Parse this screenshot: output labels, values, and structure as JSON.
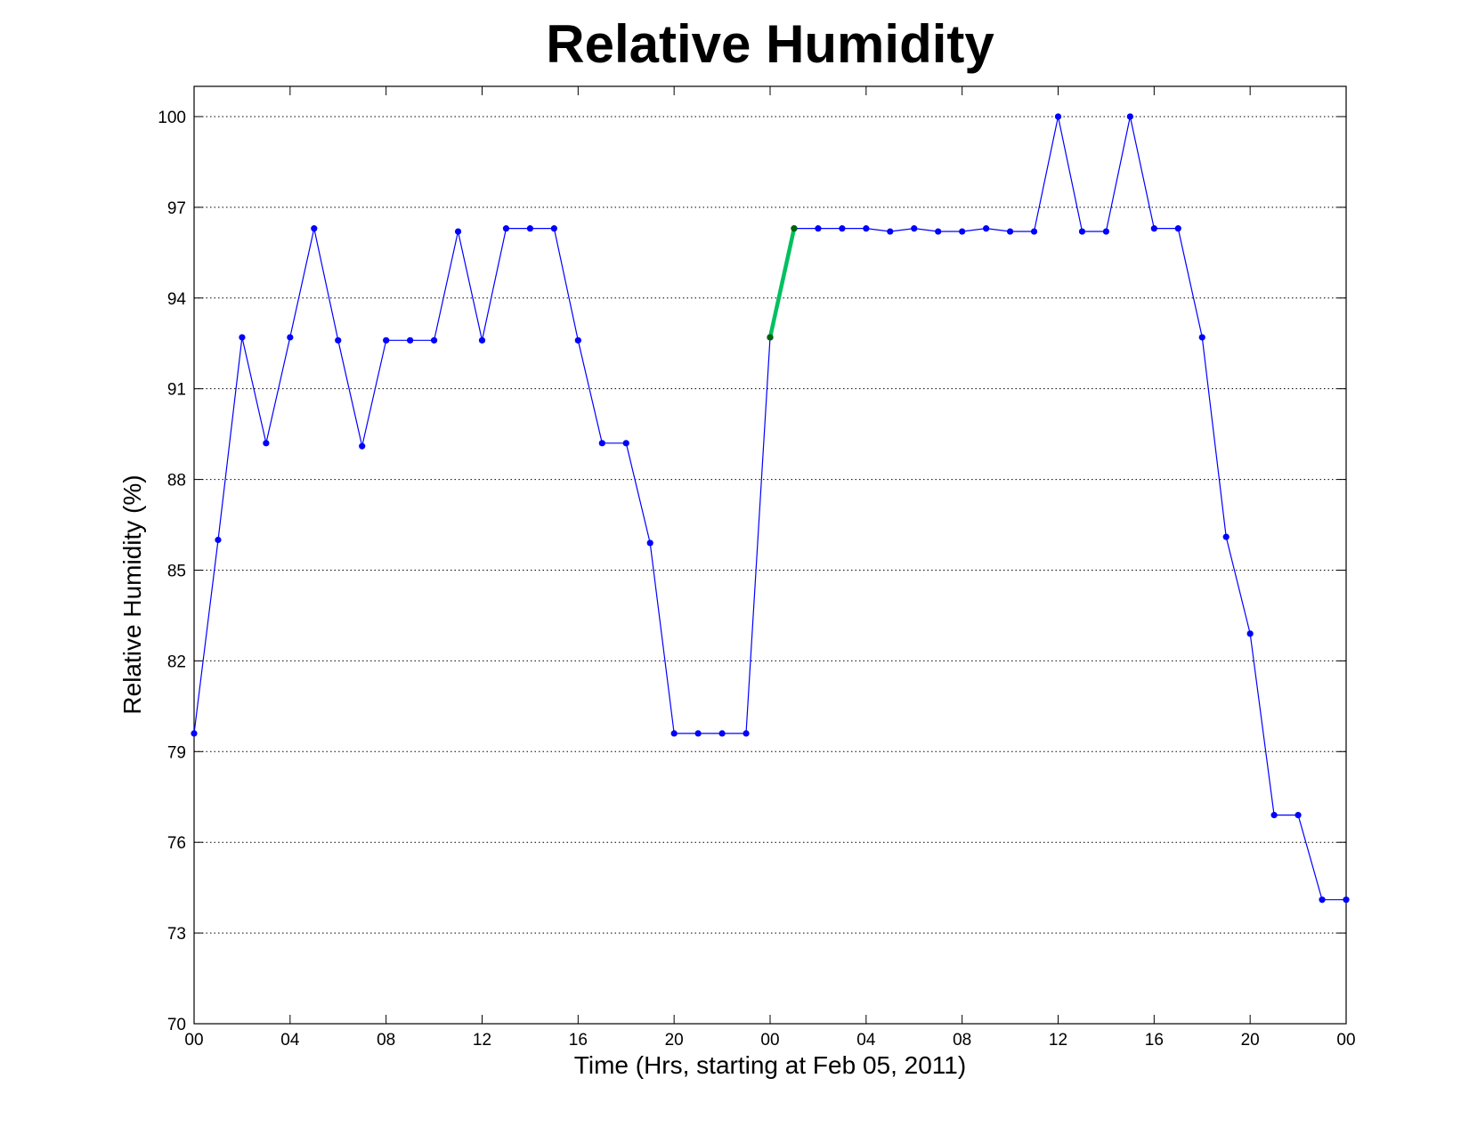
{
  "chart_data": {
    "type": "line",
    "title": "Relative Humidity",
    "xlabel": "Time (Hrs, starting at Feb 05, 2011)",
    "ylabel": "Relative Humidity (%)",
    "x_unit": "hours",
    "xlim": [
      0,
      48
    ],
    "ylim": [
      70,
      101
    ],
    "x_ticks": [
      0,
      4,
      8,
      12,
      16,
      20,
      24,
      28,
      32,
      36,
      40,
      44,
      48
    ],
    "x_tick_labels": [
      "00",
      "04",
      "08",
      "12",
      "16",
      "20",
      "00",
      "04",
      "08",
      "12",
      "16",
      "20",
      "00"
    ],
    "y_ticks": [
      70,
      73,
      76,
      79,
      82,
      85,
      88,
      91,
      94,
      97,
      100
    ],
    "y_tick_labels": [
      "70",
      "73",
      "76",
      "79",
      "82",
      "85",
      "88",
      "91",
      "94",
      "97",
      "100"
    ],
    "grid": "horizontal dotted",
    "colors": {
      "series": "#0000ff",
      "highlight": "#00c060",
      "highlight_marker": "#006400",
      "axes": "#000000",
      "grid": "#000000"
    },
    "series": [
      {
        "x": [
          0,
          1,
          2,
          3,
          4,
          5,
          6,
          7,
          8,
          9,
          10,
          11,
          12,
          13,
          14,
          15,
          16,
          17,
          18,
          19,
          20,
          21,
          22,
          23,
          24,
          25,
          26,
          27,
          28,
          29,
          30,
          31,
          32,
          33,
          34,
          35,
          36,
          37,
          38,
          39,
          40,
          41,
          42,
          43,
          44,
          45,
          46,
          47,
          48
        ],
        "values": [
          79.6,
          86.0,
          92.7,
          89.2,
          92.7,
          96.3,
          92.6,
          89.1,
          92.6,
          92.6,
          92.6,
          96.2,
          92.6,
          96.3,
          96.3,
          96.3,
          92.6,
          89.2,
          89.2,
          85.9,
          79.6,
          79.6,
          79.6,
          79.6,
          92.7,
          96.3,
          96.3,
          96.3,
          96.3,
          96.2,
          96.3,
          96.2,
          96.2,
          96.3,
          96.2,
          96.2,
          100.0,
          96.2,
          96.2,
          100.0,
          96.3,
          96.3,
          92.7,
          86.1,
          82.9,
          76.9,
          76.9,
          74.1,
          74.1
        ]
      }
    ],
    "highlight": {
      "x": [
        24,
        25
      ],
      "values": [
        92.7,
        96.3
      ]
    }
  }
}
